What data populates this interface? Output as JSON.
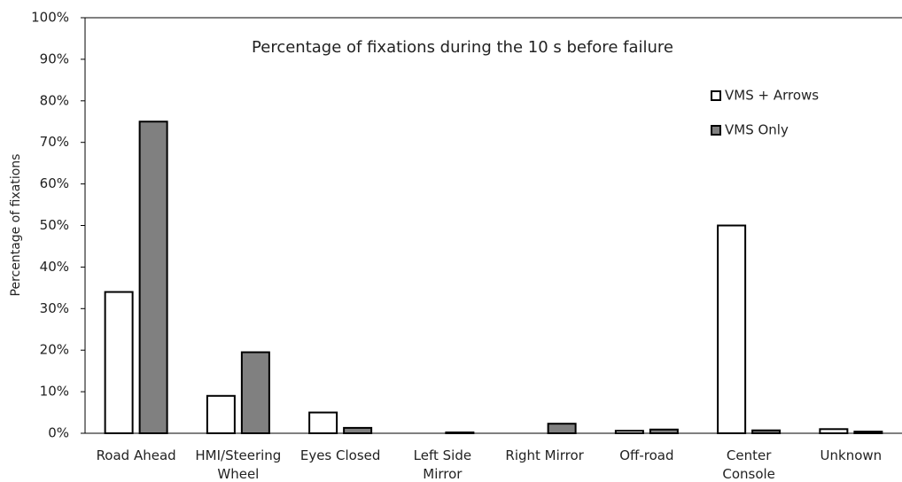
{
  "chart_data": {
    "type": "bar",
    "title": "Percentage of fixations during the 10 s before failure",
    "y_label": "Percentage of fixations",
    "categories": [
      "Road Ahead",
      "HMI/Steering\nWheel",
      "Eyes Closed",
      "Left Side\nMirror",
      "Right Mirror",
      "Off-road",
      "Center\nConsole",
      "Unknown"
    ],
    "series": [
      {
        "name": "VMS + Arrows",
        "color": "#ffffff",
        "values": [
          34,
          9,
          5,
          0,
          0,
          0.6,
          50,
          1
        ]
      },
      {
        "name": "VMS Only",
        "color": "#808080",
        "values": [
          75,
          19.5,
          1.3,
          0.2,
          2.3,
          0.9,
          0.7,
          0.4
        ]
      }
    ],
    "ylim": [
      0,
      100
    ],
    "yticks": [
      {
        "value": 0,
        "label": "0%"
      },
      {
        "value": 10,
        "label": "10%"
      },
      {
        "value": 20,
        "label": "20%"
      },
      {
        "value": 30,
        "label": "30%"
      },
      {
        "value": 40,
        "label": "40%"
      },
      {
        "value": 50,
        "label": "50%"
      },
      {
        "value": 60,
        "label": "60%"
      },
      {
        "value": 70,
        "label": "70%"
      },
      {
        "value": 80,
        "label": "80%"
      },
      {
        "value": 90,
        "label": "90%"
      },
      {
        "value": 100,
        "label": "100%"
      }
    ],
    "grid": false,
    "legend": "top-right"
  }
}
